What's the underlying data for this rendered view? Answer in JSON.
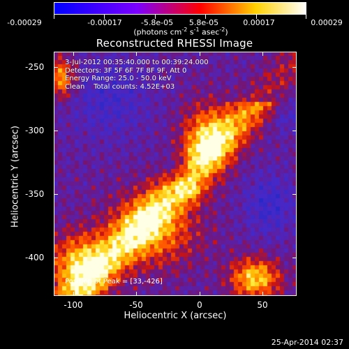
{
  "colorbar": {
    "labels": [
      "-0.00029",
      "-0.00017",
      "-5.8e-05",
      "5.8e-05",
      "0.00017",
      "0.00029"
    ],
    "unit_prefix": "(photons cm",
    "unit_sup1": "-2",
    "unit_mid": " s",
    "unit_sup2": "-1",
    "unit_mid2": " asec",
    "unit_sup3": "-2",
    "unit_suffix": ")",
    "colors": [
      "#0000ff",
      "#7b00ff",
      "#ff0000",
      "#ffd000",
      "#ffffff"
    ]
  },
  "title": "Reconstructed RHESSI Image",
  "info": {
    "line1": "3-Jul-2012 00:35:40.000 to 00:39:24.000",
    "line2": "Detectors: 3F 5F 6F 7F 8F 9F, Att 0",
    "line3": "Energy Range: 25.0 - 50.0 keV",
    "line4": "Clean    Total counts: 4.52E+03"
  },
  "peak": "Position of Peak = [33,-426]",
  "axes": {
    "x_title": "Heliocentric X (arcsec)",
    "y_title": "Heliocentric Y (arcsec)",
    "x_ticks": [
      "-100",
      "-50",
      "0",
      "50"
    ],
    "y_ticks": [
      "-250",
      "-300",
      "-350",
      "-400"
    ]
  },
  "footer_date": "25-Apr-2014 02:37",
  "chart_data": {
    "type": "heatmap",
    "title": "Reconstructed RHESSI Image",
    "xlabel": "Heliocentric X (arcsec)",
    "ylabel": "Heliocentric Y (arcsec)",
    "xlim": [
      -115,
      78
    ],
    "ylim": [
      -430,
      -236
    ],
    "x_ticks": [
      -100,
      -50,
      0,
      50
    ],
    "y_ticks": [
      -250,
      -300,
      -350,
      -400
    ],
    "colorbar_range": [
      -0.00029,
      0.00029
    ],
    "peak": [
      33,
      -426
    ]
  }
}
